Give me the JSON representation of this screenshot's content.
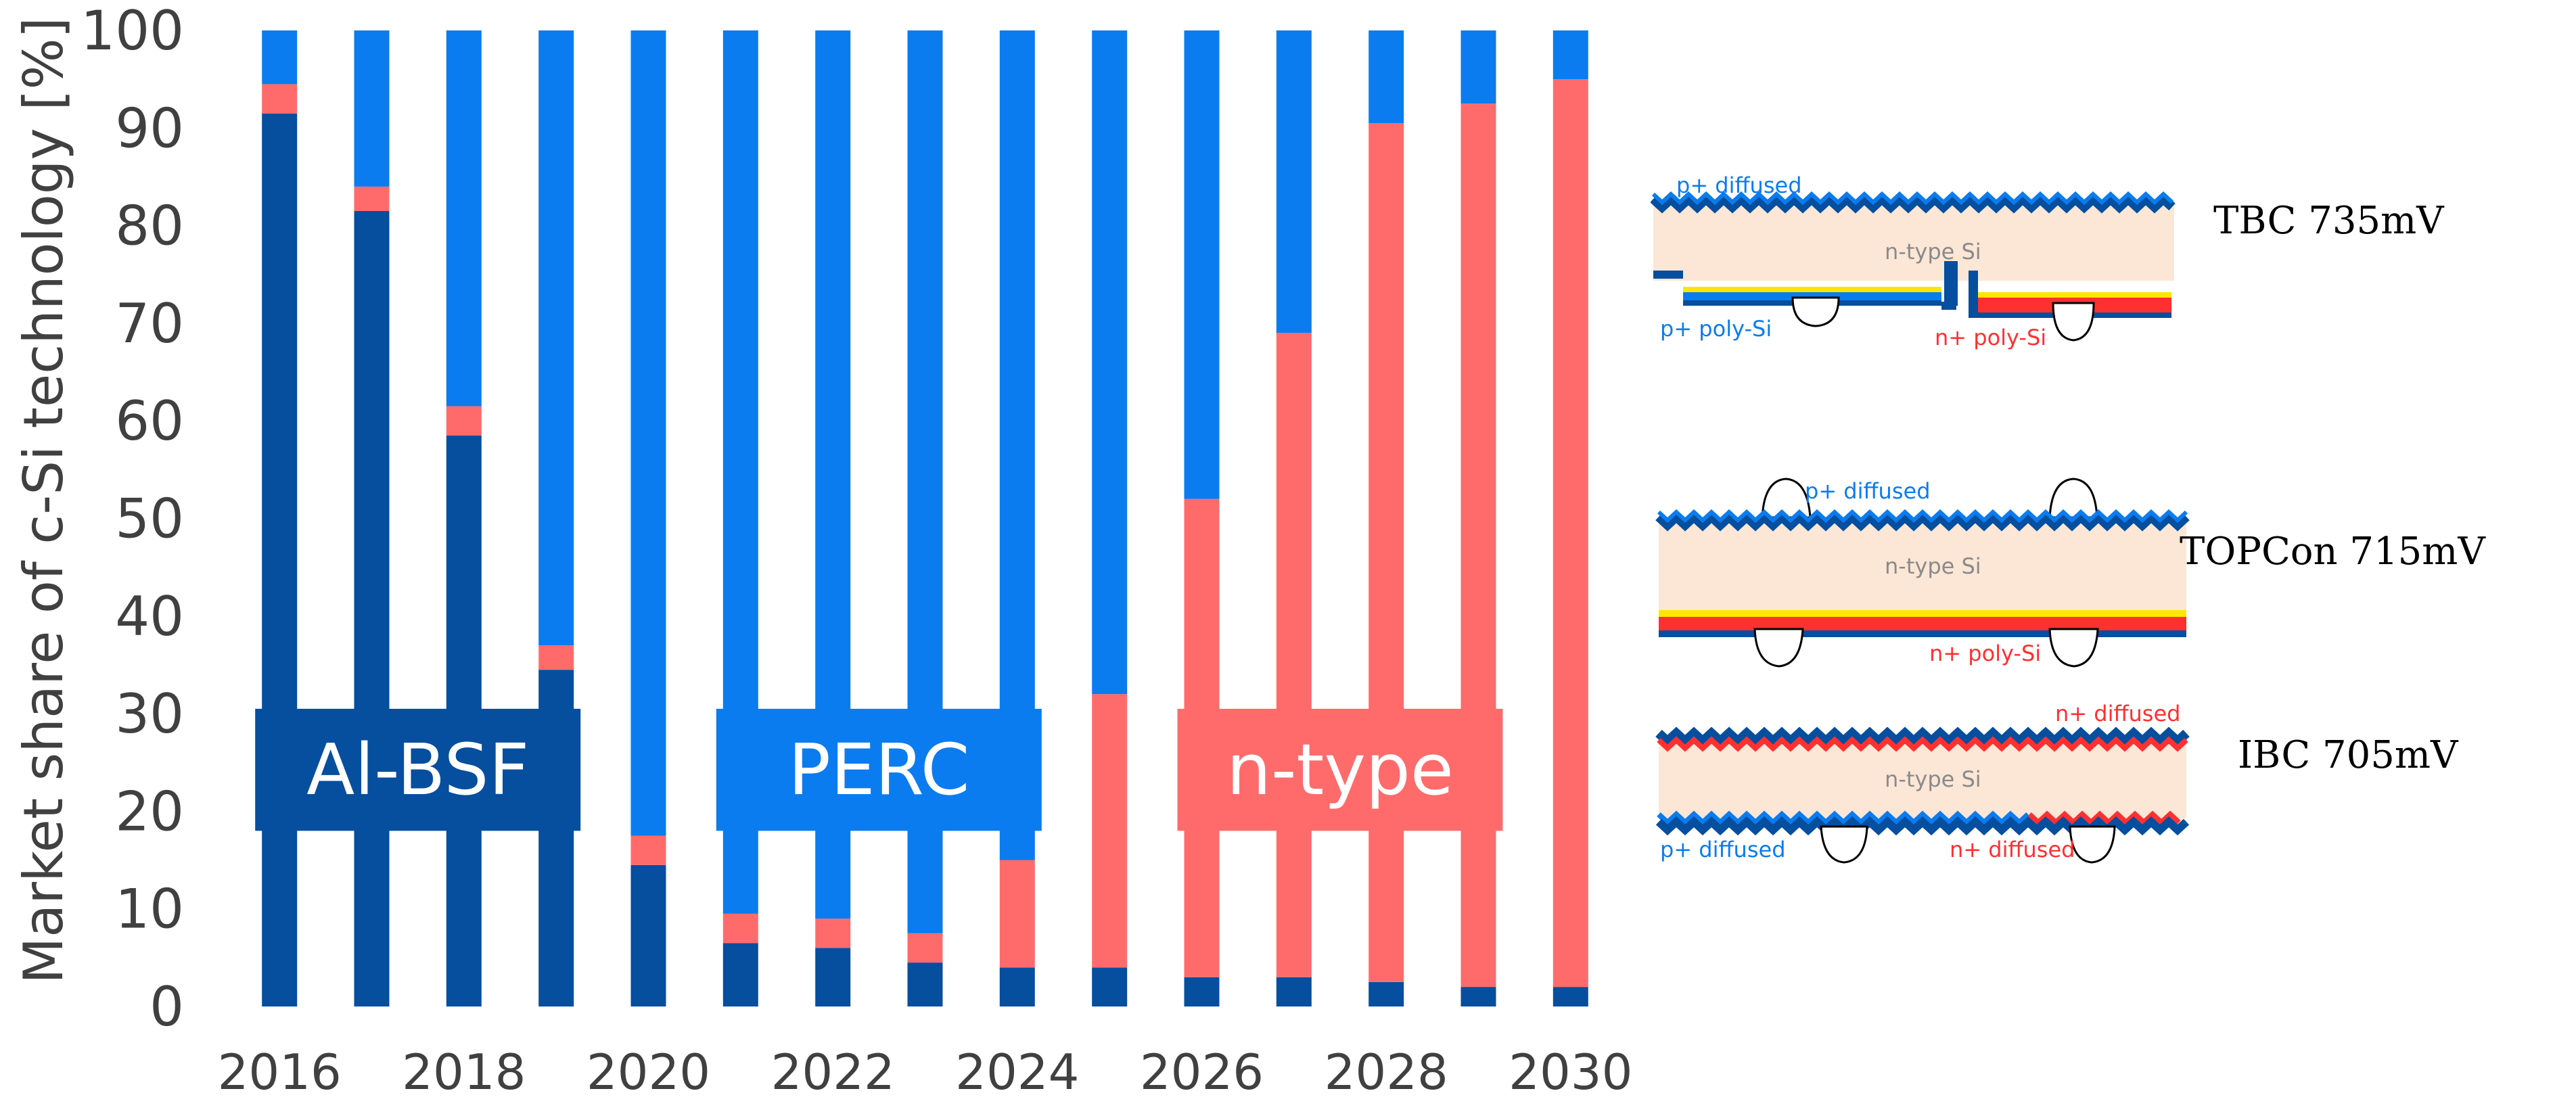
{
  "chart_data": {
    "type": "bar",
    "stacked": true,
    "title": "",
    "xlabel": "",
    "ylabel": "Market share of c-Si technology [%]",
    "ylim": [
      0,
      100
    ],
    "yticks": [
      "0",
      "10",
      "20",
      "30",
      "40",
      "50",
      "60",
      "70",
      "80",
      "90",
      "100"
    ],
    "xtick_labels": [
      "2016",
      "2018",
      "2020",
      "2022",
      "2024",
      "2026",
      "2028",
      "2030"
    ],
    "grid": false,
    "categories": [
      2016,
      2017,
      2018,
      2019,
      2020,
      2021,
      2022,
      2023,
      2024,
      2025,
      2026,
      2027,
      2028,
      2029,
      2030
    ],
    "series": [
      {
        "name": "Al-BSF",
        "color": "#064E9E",
        "values": [
          91.5,
          81.5,
          58.5,
          34.5,
          0,
          0,
          0,
          0,
          0,
          0,
          0,
          0,
          0,
          0,
          0
        ]
      },
      {
        "name": "",
        "color": "#064E9E",
        "values": [
          0,
          0,
          0,
          0,
          14.5,
          6.5,
          6,
          4.5,
          4,
          4,
          3,
          3,
          2.5,
          2,
          2
        ]
      },
      {
        "name": "",
        "color": "#FF6B6B",
        "values": [
          3,
          2.5,
          3,
          2.5,
          3,
          3,
          3,
          3,
          11,
          28,
          49,
          66,
          88,
          90.5,
          93
        ]
      },
      {
        "name": "PERC",
        "color": "#0A7CEF",
        "values": [
          5.5,
          16,
          38.5,
          63,
          82.5,
          90.5,
          91,
          92.5,
          85,
          68,
          48,
          31,
          9.5,
          7.5,
          5
        ]
      }
    ],
    "labels": [
      {
        "text": "Al-BSF",
        "color": "#064E9E",
        "from": 2016,
        "to": 2019
      },
      {
        "text": "PERC",
        "color": "#0A7CEF",
        "from": 2021,
        "to": 2024
      },
      {
        "text": "n-type",
        "color": "#FF6B6B",
        "from": 2026,
        "to": 2029
      }
    ]
  },
  "diagrams": [
    {
      "name": "TBC",
      "title": "TBC 735mV",
      "texts": {
        "p_diffused": "p+ diffused",
        "bulk": "n-type Si",
        "p_poly": "p+ poly-Si",
        "n_poly": "n+ poly-Si"
      }
    },
    {
      "name": "TOPCon",
      "title": "TOPCon 715mV",
      "texts": {
        "p_diffused": "p+ diffused",
        "bulk": "n-type Si",
        "n_poly": "n+ poly-Si"
      }
    },
    {
      "name": "IBC",
      "title": "IBC 705mV",
      "texts": {
        "n_diffused_top": "n+ diffused",
        "bulk": "n-type Si",
        "p_diffused": "p+ diffused",
        "n_diffused": "n+ diffused"
      }
    }
  ],
  "colors": {
    "dark_blue": "#064E9E",
    "light_blue": "#0A7CEF",
    "salmon": "#FF6B6B",
    "bulk": "#FCE6D6",
    "yellow": "#FFE600",
    "red": "#FF3030",
    "axis_text": "#404040"
  }
}
